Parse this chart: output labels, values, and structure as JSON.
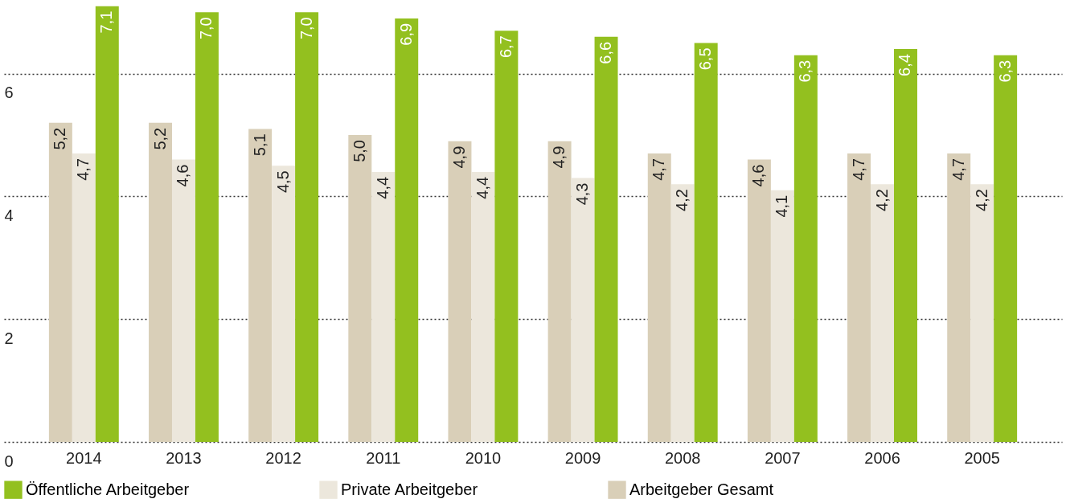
{
  "chart_data": {
    "type": "bar",
    "categories": [
      "2014",
      "2013",
      "2012",
      "2011",
      "2010",
      "2009",
      "2008",
      "2007",
      "2006",
      "2005"
    ],
    "series": [
      {
        "name": "Arbeitgeber Gesamt",
        "color": "#d9cfb8",
        "values": [
          5.2,
          5.2,
          5.1,
          5.0,
          4.9,
          4.9,
          4.7,
          4.6,
          4.7,
          4.7
        ],
        "value_labels": [
          "5,2",
          "5,2",
          "5,1",
          "5,0",
          "4,9",
          "4,9",
          "4,7",
          "4,6",
          "4,7",
          "4,7"
        ]
      },
      {
        "name": "Private Arbeitgeber",
        "color": "#ece7dc",
        "values": [
          4.7,
          4.6,
          4.5,
          4.4,
          4.4,
          4.3,
          4.2,
          4.1,
          4.2,
          4.2
        ],
        "value_labels": [
          "4,7",
          "4,6",
          "4,5",
          "4,4",
          "4,4",
          "4,3",
          "4,2",
          "4,1",
          "4,2",
          "4,2"
        ]
      },
      {
        "name": "Öffentliche Arbeitgeber",
        "color": "#93c01f",
        "values": [
          7.1,
          7.0,
          7.0,
          6.9,
          6.7,
          6.6,
          6.5,
          6.3,
          6.4,
          6.3
        ],
        "value_labels": [
          "7,1",
          "7,0",
          "7,0",
          "6,9",
          "6,7",
          "6,6",
          "6,5",
          "6,3",
          "6,4",
          "6,3"
        ]
      }
    ],
    "ylim": [
      0,
      7.2
    ],
    "yticks": [
      0,
      2,
      4,
      6
    ],
    "grid": "y",
    "legend": "bottom"
  }
}
